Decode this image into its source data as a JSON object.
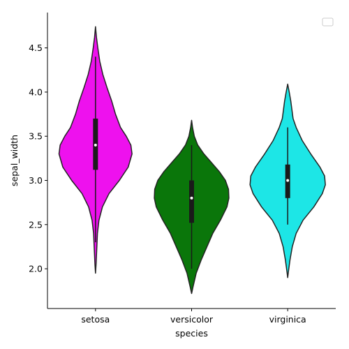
{
  "chart_data": {
    "type": "violin",
    "xlabel": "species",
    "ylabel": "sepal_width",
    "ylim": [
      1.55,
      4.9
    ],
    "yticks": [
      2.0,
      2.5,
      3.0,
      3.5,
      4.0,
      4.5
    ],
    "ytick_labels": [
      "2.0",
      "2.5",
      "3.0",
      "3.5",
      "4.0",
      "4.5"
    ],
    "categories": [
      "setosa",
      "versicolor",
      "virginica"
    ],
    "colors": [
      "#ee11ee",
      "#0a760a",
      "#1de6e6"
    ],
    "legend": {
      "placement": "top-right",
      "entries": []
    },
    "grid": false,
    "series": [
      {
        "category": "setosa",
        "q1": 3.12,
        "median": 3.4,
        "q3": 3.7,
        "whisker_low": 2.3,
        "whisker_high": 4.4,
        "density": [
          [
            1.95,
            0.0
          ],
          [
            2.05,
            0.015
          ],
          [
            2.2,
            0.03
          ],
          [
            2.4,
            0.05
          ],
          [
            2.55,
            0.09
          ],
          [
            2.7,
            0.18
          ],
          [
            2.85,
            0.35
          ],
          [
            3.0,
            0.62
          ],
          [
            3.15,
            0.85
          ],
          [
            3.3,
            0.95
          ],
          [
            3.4,
            0.92
          ],
          [
            3.5,
            0.8
          ],
          [
            3.6,
            0.65
          ],
          [
            3.75,
            0.52
          ],
          [
            3.9,
            0.42
          ],
          [
            4.05,
            0.3
          ],
          [
            4.2,
            0.19
          ],
          [
            4.35,
            0.11
          ],
          [
            4.5,
            0.06
          ],
          [
            4.62,
            0.025
          ],
          [
            4.74,
            0.0
          ]
        ]
      },
      {
        "category": "versicolor",
        "q1": 2.52,
        "median": 2.8,
        "q3": 3.0,
        "whisker_low": 2.0,
        "whisker_high": 3.4,
        "density": [
          [
            1.72,
            0.0
          ],
          [
            1.8,
            0.04
          ],
          [
            1.95,
            0.12
          ],
          [
            2.1,
            0.25
          ],
          [
            2.25,
            0.4
          ],
          [
            2.4,
            0.55
          ],
          [
            2.55,
            0.75
          ],
          [
            2.7,
            0.92
          ],
          [
            2.8,
            0.97
          ],
          [
            2.9,
            0.96
          ],
          [
            3.0,
            0.88
          ],
          [
            3.1,
            0.72
          ],
          [
            3.2,
            0.52
          ],
          [
            3.3,
            0.32
          ],
          [
            3.4,
            0.16
          ],
          [
            3.5,
            0.07
          ],
          [
            3.6,
            0.025
          ],
          [
            3.68,
            0.0
          ]
        ]
      },
      {
        "category": "virginica",
        "q1": 2.8,
        "median": 3.0,
        "q3": 3.18,
        "whisker_low": 2.5,
        "whisker_high": 3.6,
        "density": [
          [
            1.9,
            0.0
          ],
          [
            1.97,
            0.02
          ],
          [
            2.1,
            0.06
          ],
          [
            2.25,
            0.12
          ],
          [
            2.4,
            0.22
          ],
          [
            2.55,
            0.4
          ],
          [
            2.7,
            0.68
          ],
          [
            2.85,
            0.9
          ],
          [
            2.95,
            0.98
          ],
          [
            3.05,
            0.96
          ],
          [
            3.15,
            0.84
          ],
          [
            3.3,
            0.6
          ],
          [
            3.45,
            0.38
          ],
          [
            3.6,
            0.22
          ],
          [
            3.7,
            0.14
          ],
          [
            3.8,
            0.11
          ],
          [
            3.9,
            0.08
          ],
          [
            4.0,
            0.04
          ],
          [
            4.09,
            0.0
          ]
        ]
      }
    ]
  }
}
